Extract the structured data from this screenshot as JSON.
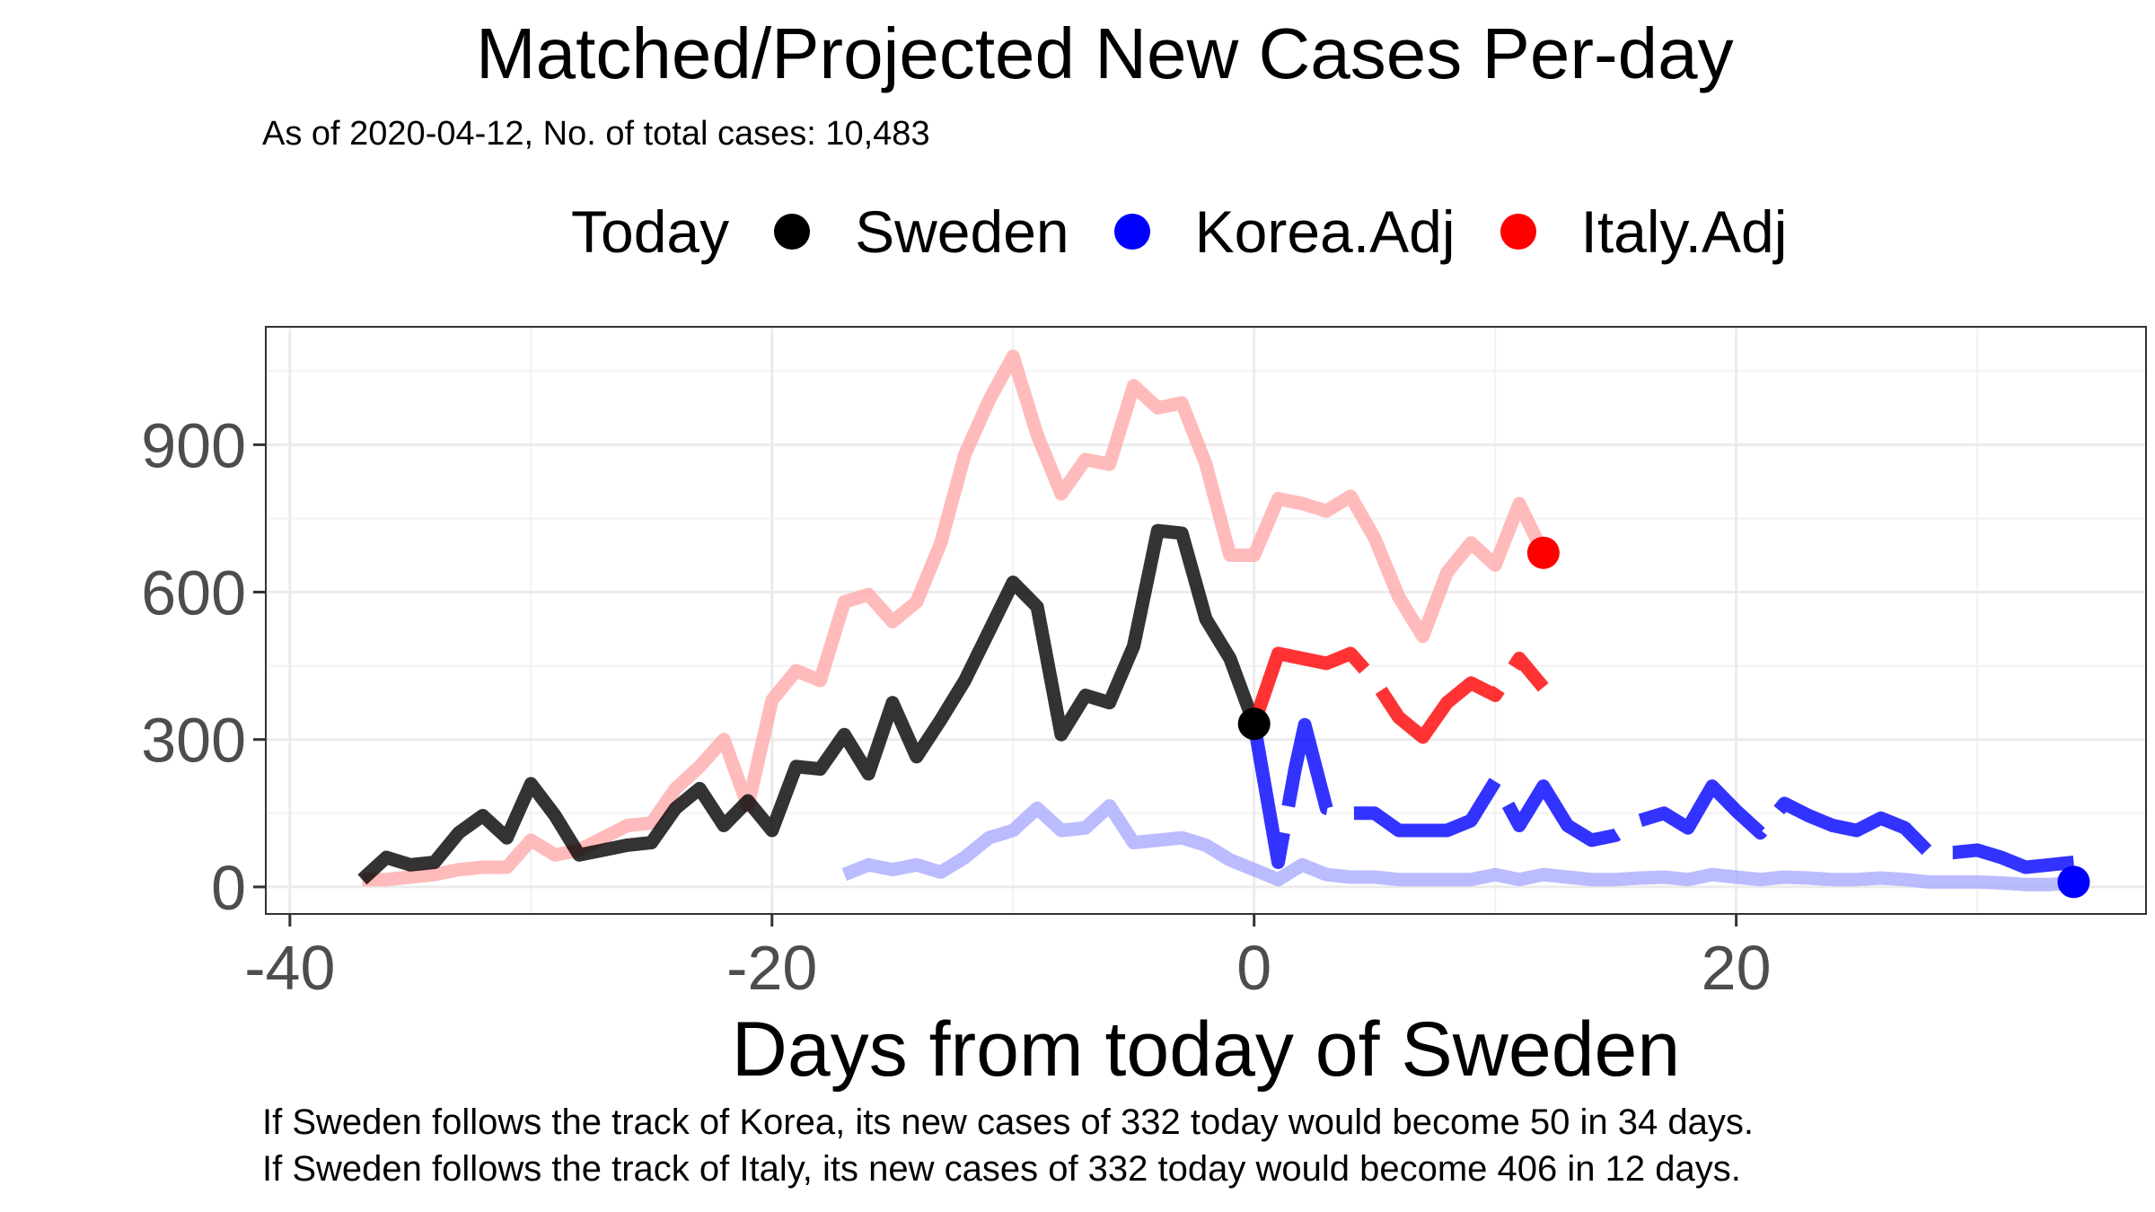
{
  "title": "Matched/Projected New Cases Per-day",
  "subtitle": "As of 2020-04-12, No. of total cases: 10,483",
  "legend": {
    "title": "Today",
    "items": [
      {
        "label": "Sweden",
        "color": "#000000"
      },
      {
        "label": "Korea.Adj",
        "color": "#0000ff"
      },
      {
        "label": "Italy.Adj",
        "color": "#ff0000"
      }
    ]
  },
  "captions": [
    "If Sweden follows the track of Korea, its new cases of 332 today would become 50 in 34 days.",
    "If Sweden follows the track of Italy, its new cases of 332 today would become 406 in 12 days."
  ],
  "chart_data": {
    "type": "line",
    "xlabel": "Days from today of Sweden",
    "ylabel": "",
    "xlim": [
      -41,
      37
    ],
    "ylim": [
      -55,
      1140
    ],
    "x_ticks": [
      -40,
      -20,
      0,
      20
    ],
    "x_tick_labels": [
      "-40",
      "-20",
      "0",
      "20"
    ],
    "y_ticks": [
      0,
      300,
      600,
      900
    ],
    "y_tick_labels": [
      "0",
      "300",
      "600",
      "900"
    ],
    "grid": true,
    "legend_position": "top",
    "series": [
      {
        "name": "Sweden",
        "color": "#000000",
        "points": [
          [
            -37,
            15
          ],
          [
            -36,
            60
          ],
          [
            -35,
            45
          ],
          [
            -34,
            50
          ],
          [
            -33,
            110
          ],
          [
            -32,
            145
          ],
          [
            -31,
            100
          ],
          [
            -30,
            210
          ],
          [
            -29,
            145
          ],
          [
            -28,
            65
          ],
          [
            -27,
            75
          ],
          [
            -26,
            85
          ],
          [
            -25,
            90
          ],
          [
            -24,
            160
          ],
          [
            -23,
            200
          ],
          [
            -22,
            125
          ],
          [
            -21,
            175
          ],
          [
            -20,
            115
          ],
          [
            -19,
            245
          ],
          [
            -18,
            240
          ],
          [
            -17,
            310
          ],
          [
            -16,
            230
          ],
          [
            -15,
            375
          ],
          [
            -14,
            265
          ],
          [
            -13,
            340
          ],
          [
            -12,
            420
          ],
          [
            -11,
            520
          ],
          [
            -10,
            620
          ],
          [
            -9,
            570
          ],
          [
            -8,
            310
          ],
          [
            -7,
            390
          ],
          [
            -6,
            375
          ],
          [
            -5,
            490
          ],
          [
            -4,
            725
          ],
          [
            -3,
            720
          ],
          [
            -2,
            545
          ],
          [
            -1,
            465
          ],
          [
            0,
            332
          ]
        ]
      },
      {
        "name": "Korea.Adj",
        "color": "#0000ff",
        "points": [
          [
            0,
            332
          ],
          [
            1,
            50
          ],
          [
            1.7,
            240
          ],
          [
            2.1,
            330
          ],
          [
            3,
            160
          ],
          [
            4,
            150
          ],
          [
            5,
            150
          ],
          [
            6,
            115
          ],
          [
            7,
            115
          ],
          [
            8,
            115
          ],
          [
            9,
            135
          ],
          [
            10,
            215
          ],
          [
            11,
            125
          ],
          [
            12,
            205
          ],
          [
            13,
            125
          ],
          [
            14,
            95
          ],
          [
            15,
            105
          ],
          [
            16,
            135
          ],
          [
            17,
            150
          ],
          [
            18,
            120
          ],
          [
            19,
            205
          ],
          [
            20,
            155
          ],
          [
            21,
            110
          ],
          [
            22,
            170
          ],
          [
            23,
            145
          ],
          [
            24,
            125
          ],
          [
            25,
            115
          ],
          [
            26,
            140
          ],
          [
            27,
            120
          ],
          [
            28,
            70
          ],
          [
            29,
            70
          ],
          [
            30,
            75
          ],
          [
            31,
            60
          ],
          [
            32,
            40
          ],
          [
            33,
            45
          ],
          [
            34,
            50
          ]
        ]
      },
      {
        "name": "Italy.Adj",
        "color": "#ff0000",
        "points": [
          [
            0,
            332
          ],
          [
            1,
            475
          ],
          [
            2,
            465
          ],
          [
            3,
            455
          ],
          [
            4,
            475
          ],
          [
            5,
            420
          ],
          [
            6,
            345
          ],
          [
            7,
            305
          ],
          [
            8,
            375
          ],
          [
            9,
            415
          ],
          [
            10,
            390
          ],
          [
            11,
            465
          ],
          [
            12,
            406
          ]
        ]
      },
      {
        "name": "Korea.Adj",
        "color": "#aaaaff",
        "points": [
          [
            -17,
            25
          ],
          [
            -16,
            45
          ],
          [
            -15,
            35
          ],
          [
            -14,
            45
          ],
          [
            -13,
            30
          ],
          [
            -12,
            60
          ],
          [
            -11,
            100
          ],
          [
            -10,
            115
          ],
          [
            -9,
            160
          ],
          [
            -8,
            115
          ],
          [
            -7,
            120
          ],
          [
            -6,
            165
          ],
          [
            -5,
            90
          ],
          [
            -4,
            95
          ],
          [
            -3,
            100
          ],
          [
            -2,
            85
          ],
          [
            -1,
            55
          ],
          [
            0,
            35
          ],
          [
            1,
            15
          ],
          [
            2,
            45
          ],
          [
            3,
            25
          ],
          [
            4,
            20
          ],
          [
            5,
            20
          ],
          [
            6,
            15
          ],
          [
            7,
            15
          ],
          [
            8,
            15
          ],
          [
            9,
            15
          ],
          [
            10,
            25
          ],
          [
            11,
            15
          ],
          [
            12,
            25
          ],
          [
            13,
            20
          ],
          [
            14,
            15
          ],
          [
            15,
            15
          ],
          [
            16,
            18
          ],
          [
            17,
            20
          ],
          [
            18,
            15
          ],
          [
            19,
            25
          ],
          [
            20,
            20
          ],
          [
            21,
            15
          ],
          [
            22,
            20
          ],
          [
            23,
            18
          ],
          [
            24,
            15
          ],
          [
            25,
            15
          ],
          [
            26,
            18
          ],
          [
            27,
            15
          ],
          [
            28,
            10
          ],
          [
            29,
            10
          ],
          [
            30,
            10
          ],
          [
            31,
            8
          ],
          [
            32,
            5
          ],
          [
            33,
            5
          ],
          [
            34,
            8
          ]
        ]
      },
      {
        "name": "Italy.Adj",
        "color": "#ffaaaa",
        "points": [
          [
            -37,
            15
          ],
          [
            -36,
            15
          ],
          [
            -35,
            20
          ],
          [
            -34,
            25
          ],
          [
            -33,
            35
          ],
          [
            -32,
            40
          ],
          [
            -31,
            40
          ],
          [
            -30,
            95
          ],
          [
            -29,
            65
          ],
          [
            -28,
            75
          ],
          [
            -27,
            100
          ],
          [
            -26,
            125
          ],
          [
            -25,
            130
          ],
          [
            -24,
            200
          ],
          [
            -23,
            245
          ],
          [
            -22,
            300
          ],
          [
            -21,
            165
          ],
          [
            -20,
            380
          ],
          [
            -19,
            440
          ],
          [
            -18,
            420
          ],
          [
            -17,
            580
          ],
          [
            -16,
            595
          ],
          [
            -15,
            540
          ],
          [
            -14,
            580
          ],
          [
            -13,
            700
          ],
          [
            -12,
            880
          ],
          [
            -11,
            990
          ],
          [
            -10,
            1080
          ],
          [
            -9,
            920
          ],
          [
            -8,
            800
          ],
          [
            -7,
            870
          ],
          [
            -6,
            860
          ],
          [
            -5,
            1020
          ],
          [
            -4,
            975
          ],
          [
            -3,
            985
          ],
          [
            -2,
            860
          ],
          [
            -1,
            675
          ],
          [
            0,
            675
          ],
          [
            1,
            790
          ],
          [
            2,
            780
          ],
          [
            3,
            765
          ],
          [
            4,
            795
          ],
          [
            5,
            710
          ],
          [
            6,
            590
          ],
          [
            7,
            510
          ],
          [
            8,
            640
          ],
          [
            9,
            700
          ],
          [
            10,
            655
          ],
          [
            11,
            780
          ],
          [
            12,
            680
          ]
        ]
      }
    ],
    "today_markers": [
      {
        "series": "Sweden",
        "x": 0,
        "y": 332,
        "color": "#000000"
      },
      {
        "series": "Korea.Adj",
        "x": 34,
        "y": 10,
        "color": "#0000ff"
      },
      {
        "series": "Italy.Adj",
        "x": 12,
        "y": 680,
        "color": "#ff0000"
      }
    ]
  }
}
